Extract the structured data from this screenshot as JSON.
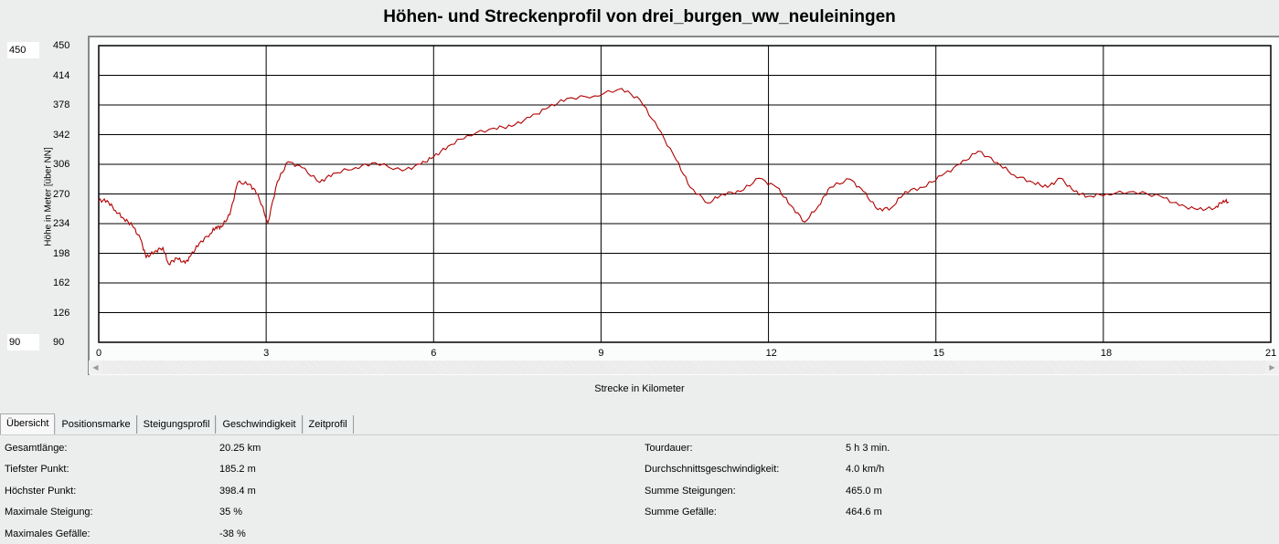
{
  "title": "Höhen- und Streckenprofil von drei_burgen_ww_neuleiningen",
  "y_max_input": "450",
  "y_min_input": "90",
  "chart_data": {
    "type": "line",
    "title": "Höhen- und Streckenprofil von drei_burgen_ww_neuleiningen",
    "xlabel": "Strecke in Kilometer",
    "ylabel": "Höhe in Meter [über NN]",
    "xlim": [
      0,
      21
    ],
    "ylim": [
      90,
      450
    ],
    "xticks": [
      "0",
      "3",
      "6",
      "9",
      "12",
      "15",
      "18",
      "21"
    ],
    "yticks": [
      "450",
      "414",
      "378",
      "342",
      "306",
      "270",
      "234",
      "198",
      "162",
      "126",
      "90"
    ],
    "grid": true,
    "line_color": "#b00000",
    "x": [
      0,
      0.15,
      0.3,
      0.45,
      0.6,
      0.75,
      0.85,
      1.0,
      1.15,
      1.25,
      1.4,
      1.55,
      1.65,
      1.8,
      2.0,
      2.1,
      2.2,
      2.35,
      2.49,
      2.7,
      2.85,
      3.03,
      3.2,
      3.39,
      3.64,
      3.96,
      4.2,
      4.6,
      4.95,
      5.44,
      5.77,
      6.0,
      6.26,
      6.6,
      7.08,
      7.4,
      7.73,
      8.06,
      8.39,
      8.88,
      9.37,
      9.7,
      10.02,
      10.35,
      10.6,
      10.92,
      11.17,
      11.5,
      11.83,
      12.15,
      12.4,
      12.65,
      12.9,
      13.1,
      13.46,
      13.7,
      13.96,
      14.2,
      14.45,
      14.77,
      15.1,
      15.43,
      15.76,
      16.1,
      16.4,
      16.74,
      17.0,
      17.23,
      17.48,
      17.72,
      18.05,
      18.54,
      19.03,
      19.36,
      19.69,
      20.0,
      20.15,
      20.25
    ],
    "y": [
      262,
      262,
      250,
      240,
      232,
      215,
      193,
      200,
      205,
      185,
      192,
      186,
      195,
      210,
      222,
      230,
      230,
      245,
      284,
      282,
      270,
      235,
      285,
      309,
      302,
      284,
      295,
      302,
      308,
      298,
      306,
      315,
      328,
      341,
      350,
      352,
      363,
      375,
      386,
      389,
      398,
      384,
      350,
      311,
      278,
      259,
      270,
      273,
      289,
      278,
      256,
      236,
      256,
      278,
      288,
      273,
      251,
      253,
      273,
      278,
      292,
      306,
      322,
      308,
      293,
      284,
      278,
      289,
      273,
      267,
      270,
      273,
      267,
      256,
      251,
      253,
      262,
      260
    ]
  },
  "tabs": [
    "Übersicht",
    "Positionsmarke",
    "Steigungsprofil",
    "Geschwindigkeit",
    "Zeitprofil"
  ],
  "stats_left": [
    {
      "label": "Gesamtlänge:",
      "value": "20.25 km"
    },
    {
      "label": "Tiefster Punkt:",
      "value": "185.2 m"
    },
    {
      "label": "Höchster Punkt:",
      "value": "398.4 m"
    },
    {
      "label": "Maximale Steigung:",
      "value": "35 %"
    },
    {
      "label": "Maximales Gefälle:",
      "value": "-38 %"
    }
  ],
  "stats_right": [
    {
      "label": "Tourdauer:",
      "value": "5 h 3 min."
    },
    {
      "label": "Durchschnittsgeschwindigkeit:",
      "value": "4.0 km/h"
    },
    {
      "label": "Summe Steigungen:",
      "value": "465.0 m"
    },
    {
      "label": "Summe Gefälle:",
      "value": "464.6 m"
    }
  ]
}
